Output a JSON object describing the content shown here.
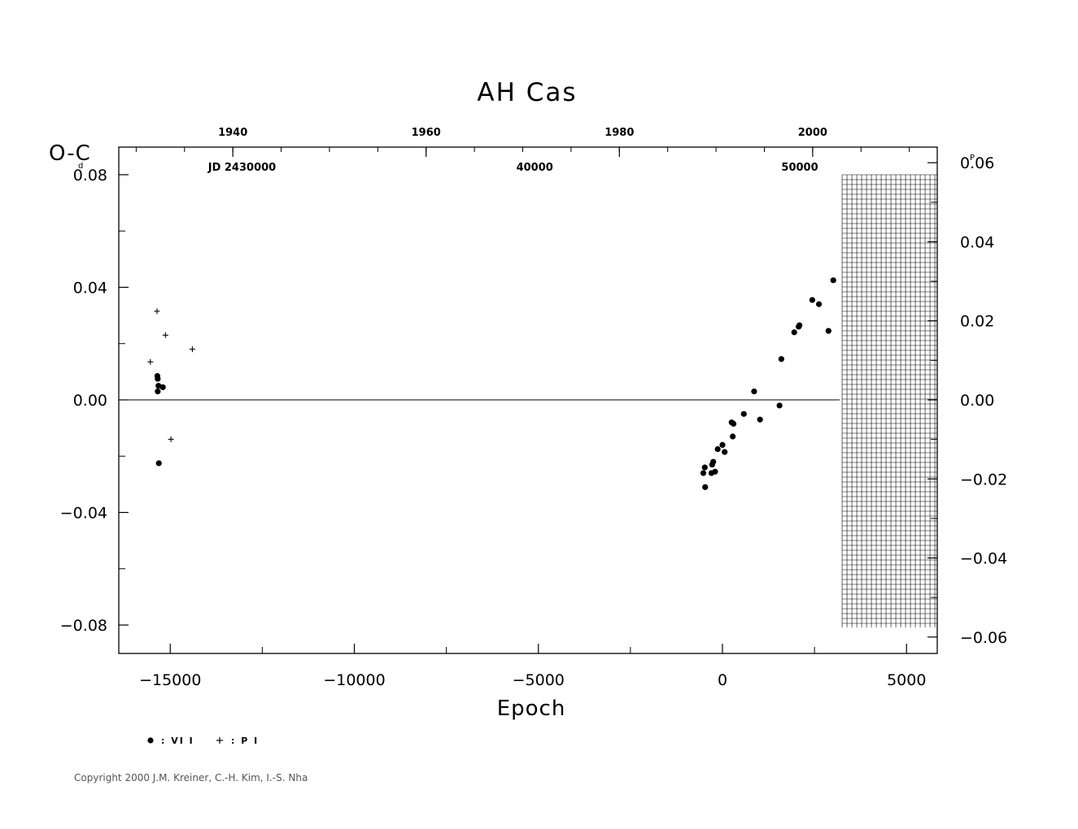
{
  "chart_data": {
    "type": "scatter",
    "title": "AH  Cas",
    "xlabel": "Epoch",
    "ylabel": "O-C",
    "ylabel_unit": "d",
    "right_axis_unit": "P",
    "xlim": [
      -16000,
      5800
    ],
    "ylim": [
      -0.09,
      0.09
    ],
    "right_ylim": [
      -0.064,
      0.064
    ],
    "x_ticks": [
      -15000,
      -10000,
      -5000,
      0,
      5000
    ],
    "x_tick_labels": [
      "-15000",
      "-10000",
      "-5000",
      "0",
      "5000"
    ],
    "y_ticks": [
      0.08,
      0.04,
      0.0,
      -0.04,
      -0.08
    ],
    "y_tick_labels": [
      "0.08",
      "0.04",
      "0.00",
      "-0.04",
      "-0.08"
    ],
    "right_y_ticks": [
      0.06,
      0.04,
      0.02,
      0.0,
      -0.02,
      -0.04,
      -0.06
    ],
    "right_y_tick_labels": [
      "0.06",
      "0.04",
      "0.02",
      "0.00",
      "-0.02",
      "-0.04",
      "-0.06"
    ],
    "top_year_ticks": [
      1940,
      1960,
      1980,
      2000
    ],
    "top_year_labels": [
      "1940",
      "1960",
      "1980",
      "2000"
    ],
    "top_year_epochs": [
      -13300,
      -8050,
      -2800,
      2450
    ],
    "jd_labels": [
      {
        "text": "JD  2430000",
        "epoch": -13050
      },
      {
        "text": "40000",
        "epoch": -5100
      },
      {
        "text": "50000",
        "epoch": 2100
      }
    ],
    "zero_line": true,
    "future_hatch_from_epoch": 3250,
    "legend": [
      {
        "symbol": "dot",
        "label": ": VI  I"
      },
      {
        "symbol": "plus",
        "label": ": P  I"
      }
    ],
    "series": [
      {
        "name": "VI",
        "symbol": "dot",
        "points": [
          [
            -15350,
            0.0085
          ],
          [
            -15340,
            0.0075
          ],
          [
            -15320,
            0.005
          ],
          [
            -15340,
            0.003
          ],
          [
            -15200,
            0.0045
          ],
          [
            -15310,
            -0.0225
          ],
          [
            -520,
            -0.026
          ],
          [
            -480,
            -0.024
          ],
          [
            -470,
            -0.031
          ],
          [
            -300,
            -0.026
          ],
          [
            -250,
            -0.022
          ],
          [
            -280,
            -0.023
          ],
          [
            -200,
            -0.0255
          ],
          [
            -130,
            -0.0175
          ],
          [
            0,
            -0.016
          ],
          [
            60,
            -0.0185
          ],
          [
            250,
            -0.008
          ],
          [
            300,
            -0.0085
          ],
          [
            280,
            -0.013
          ],
          [
            580,
            -0.005
          ],
          [
            860,
            0.003
          ],
          [
            1020,
            -0.007
          ],
          [
            1550,
            -0.002
          ],
          [
            1600,
            0.0145
          ],
          [
            1950,
            0.024
          ],
          [
            2070,
            0.026
          ],
          [
            2090,
            0.0265
          ],
          [
            2440,
            0.0355
          ],
          [
            2620,
            0.034
          ],
          [
            2880,
            0.0245
          ],
          [
            3010,
            0.0425
          ]
        ]
      },
      {
        "name": "P",
        "symbol": "plus",
        "points": [
          [
            -15540,
            0.0135
          ],
          [
            -15360,
            0.0315
          ],
          [
            -15130,
            0.023
          ],
          [
            -14980,
            -0.014
          ],
          [
            -14400,
            0.018
          ]
        ]
      }
    ]
  },
  "copyright": "Copyright 2000 J.M. Kreiner, C.-H. Kim, I.-S. Nha"
}
